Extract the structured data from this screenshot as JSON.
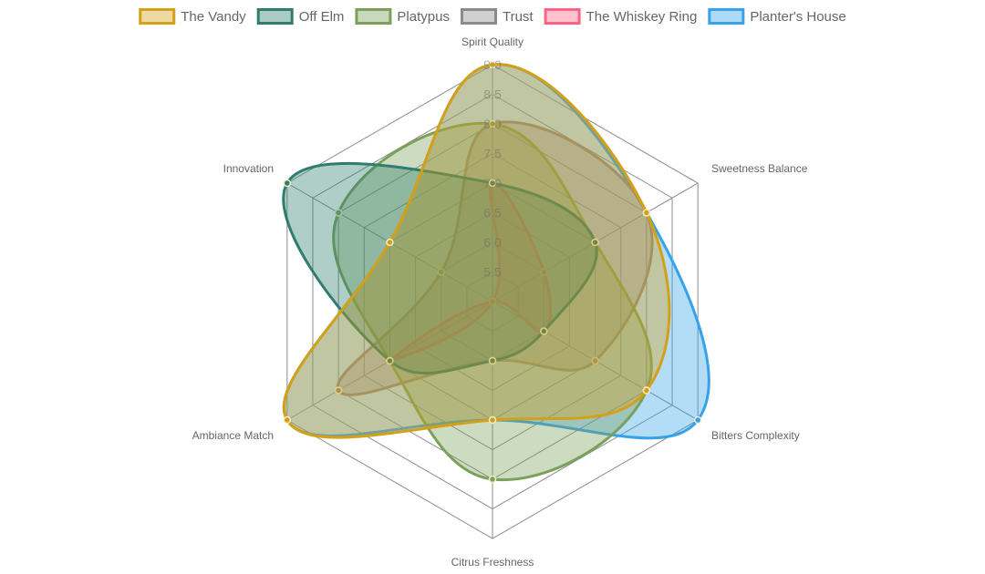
{
  "chart_data": {
    "type": "radar",
    "axes": [
      "Spirit Quality",
      "Sweetness Balance",
      "Bitters Complexity",
      "Citrus Freshness",
      "Ambiance Match",
      "Innovation"
    ],
    "range": [
      5,
      9
    ],
    "ticks": [
      "5.5",
      "6.0",
      "6.5",
      "7.0",
      "7.5",
      "8.0",
      "8.5",
      "9.0"
    ],
    "tick_values": [
      5.5,
      6,
      6.5,
      7,
      7.5,
      8,
      8.5,
      9
    ],
    "grid": true,
    "legend_position": "top",
    "series": [
      {
        "name": "The Vandy",
        "color": "#D4A017",
        "values": [
          9,
          8,
          8,
          7,
          9,
          7
        ]
      },
      {
        "name": "Off Elm",
        "color": "#2E7D6E",
        "values": [
          7,
          7,
          6,
          6,
          7,
          9
        ]
      },
      {
        "name": "Platypus",
        "color": "#7BA05B",
        "values": [
          8,
          7,
          8,
          8,
          7,
          8
        ]
      },
      {
        "name": "Trust",
        "color": "#8A8A8A",
        "values": [
          8,
          8,
          7,
          6,
          8,
          6
        ]
      },
      {
        "name": "The Whiskey Ring",
        "color": "#FF6384",
        "values": [
          7,
          6,
          6,
          5,
          7,
          5
        ]
      },
      {
        "name": "Planter's House",
        "color": "#36A2EB",
        "values": [
          9,
          8,
          9,
          7,
          9,
          7
        ]
      }
    ]
  }
}
